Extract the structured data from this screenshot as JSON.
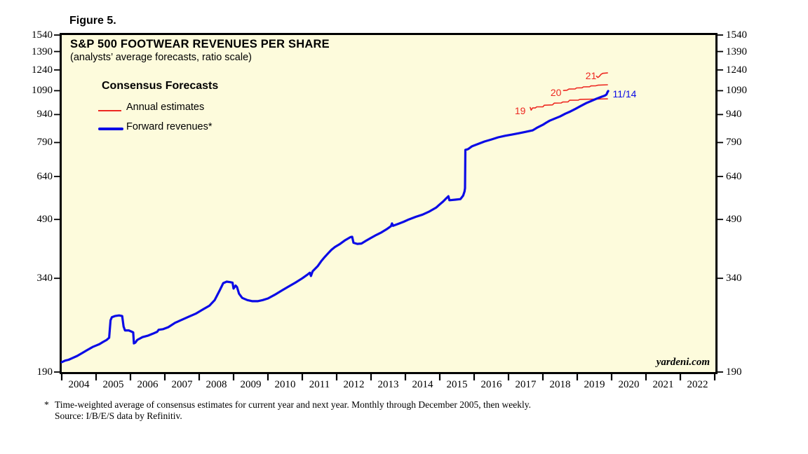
{
  "figure_label": "Figure 5.",
  "footnote": {
    "marker": "*",
    "line1": "Time-weighted average of consensus estimates for current year and next year. Monthly through December 2005, then weekly.",
    "line2": "Source: I/B/E/S data by Refinitiv."
  },
  "chart_data": {
    "type": "line",
    "title": "S&P 500 FOOTWEAR REVENUES PER SHARE",
    "subtitle": "(analysts’ average forecasts, ratio scale)",
    "watermark": "yardeni.com",
    "y_scale": "log (ratio scale)",
    "ylim": [
      190,
      1540
    ],
    "y_ticks": [
      1540,
      1390,
      1240,
      1090,
      940,
      790,
      640,
      490,
      340,
      190
    ],
    "y_tick_label_sides": "left and right",
    "x_start": 2004,
    "x_end": 2023,
    "x_labels": [
      "2004",
      "2005",
      "2006",
      "2007",
      "2008",
      "2009",
      "2010",
      "2011",
      "2012",
      "2013",
      "2014",
      "2015",
      "2016",
      "2017",
      "2018",
      "2019",
      "2020",
      "2021",
      "2022"
    ],
    "grid": "off",
    "plot_background": "#FDFBDC",
    "legend": {
      "title": "Consensus Forecasts",
      "position": "top-left-inside",
      "items": [
        {
          "label": "Annual estimates",
          "color": "#ED2821",
          "style": "thin-red-line"
        },
        {
          "label": "Forward revenues*",
          "color": "#0B0BE6",
          "style": "thick-blue-line"
        }
      ]
    },
    "series": [
      {
        "name": "Annual estimate 2019",
        "color": "#ED2821",
        "stroke_width": 1.6,
        "points": [
          [
            2017.63,
            982
          ],
          [
            2017.66,
            966
          ],
          [
            2017.7,
            979
          ],
          [
            2017.78,
            979
          ],
          [
            2017.82,
            986
          ],
          [
            2018.0,
            986
          ],
          [
            2018.04,
            996
          ],
          [
            2018.28,
            998
          ],
          [
            2018.33,
            1009
          ],
          [
            2018.53,
            1010
          ],
          [
            2018.58,
            1016
          ],
          [
            2018.73,
            1017
          ],
          [
            2018.78,
            1027
          ],
          [
            2019.03,
            1028
          ],
          [
            2019.08,
            1033
          ],
          [
            2019.45,
            1034
          ],
          [
            2019.88,
            1036
          ]
        ]
      },
      {
        "name": "Annual estimate 2020",
        "color": "#ED2821",
        "stroke_width": 1.6,
        "points": [
          [
            2018.6,
            1091
          ],
          [
            2018.7,
            1093
          ],
          [
            2018.76,
            1101
          ],
          [
            2018.94,
            1102
          ],
          [
            2018.98,
            1109
          ],
          [
            2019.14,
            1110
          ],
          [
            2019.18,
            1116
          ],
          [
            2019.36,
            1117
          ],
          [
            2019.4,
            1123
          ],
          [
            2019.54,
            1124
          ],
          [
            2019.6,
            1128
          ],
          [
            2019.88,
            1131
          ]
        ]
      },
      {
        "name": "Annual estimate 2021",
        "color": "#ED2821",
        "stroke_width": 1.6,
        "points": [
          [
            2019.56,
            1193
          ],
          [
            2019.6,
            1183
          ],
          [
            2019.64,
            1191
          ],
          [
            2019.69,
            1206
          ],
          [
            2019.74,
            1214
          ],
          [
            2019.88,
            1217
          ]
        ]
      },
      {
        "name": "Forward revenues*",
        "color": "#0B0BE6",
        "stroke_width": 3.2,
        "points": [
          [
            2004.0,
            202
          ],
          [
            2004.1,
            204
          ],
          [
            2004.2,
            205
          ],
          [
            2004.3,
            207
          ],
          [
            2004.45,
            210
          ],
          [
            2004.6,
            214
          ],
          [
            2004.75,
            218
          ],
          [
            2004.9,
            222
          ],
          [
            2005.0,
            224
          ],
          [
            2005.1,
            226
          ],
          [
            2005.2,
            229
          ],
          [
            2005.31,
            232
          ],
          [
            2005.38,
            235
          ],
          [
            2005.42,
            262
          ],
          [
            2005.46,
            267
          ],
          [
            2005.55,
            269
          ],
          [
            2005.67,
            270
          ],
          [
            2005.76,
            269
          ],
          [
            2005.8,
            252
          ],
          [
            2005.84,
            246
          ],
          [
            2005.95,
            246
          ],
          [
            2006.04,
            244
          ],
          [
            2006.08,
            243
          ],
          [
            2006.1,
            227
          ],
          [
            2006.14,
            228
          ],
          [
            2006.2,
            232
          ],
          [
            2006.35,
            236
          ],
          [
            2006.5,
            238
          ],
          [
            2006.65,
            241
          ],
          [
            2006.78,
            244
          ],
          [
            2006.82,
            247
          ],
          [
            2006.95,
            248
          ],
          [
            2007.1,
            251
          ],
          [
            2007.3,
            258
          ],
          [
            2007.5,
            263
          ],
          [
            2007.7,
            268
          ],
          [
            2007.9,
            273
          ],
          [
            2008.1,
            280
          ],
          [
            2008.3,
            287
          ],
          [
            2008.45,
            297
          ],
          [
            2008.6,
            316
          ],
          [
            2008.7,
            330
          ],
          [
            2008.8,
            333
          ],
          [
            2008.9,
            332
          ],
          [
            2008.97,
            331
          ],
          [
            2009.0,
            319
          ],
          [
            2009.06,
            325
          ],
          [
            2009.1,
            322
          ],
          [
            2009.16,
            309
          ],
          [
            2009.25,
            301
          ],
          [
            2009.4,
            297
          ],
          [
            2009.55,
            295
          ],
          [
            2009.7,
            295
          ],
          [
            2009.85,
            297
          ],
          [
            2010.0,
            300
          ],
          [
            2010.2,
            307
          ],
          [
            2010.4,
            315
          ],
          [
            2010.6,
            323
          ],
          [
            2010.8,
            331
          ],
          [
            2011.0,
            340
          ],
          [
            2011.15,
            348
          ],
          [
            2011.22,
            352
          ],
          [
            2011.25,
            345
          ],
          [
            2011.3,
            355
          ],
          [
            2011.45,
            367
          ],
          [
            2011.55,
            378
          ],
          [
            2011.65,
            388
          ],
          [
            2011.75,
            397
          ],
          [
            2011.85,
            406
          ],
          [
            2011.95,
            413
          ],
          [
            2012.1,
            421
          ],
          [
            2012.25,
            431
          ],
          [
            2012.4,
            439
          ],
          [
            2012.45,
            440
          ],
          [
            2012.49,
            424
          ],
          [
            2012.6,
            421
          ],
          [
            2012.72,
            422
          ],
          [
            2012.85,
            429
          ],
          [
            2013.0,
            437
          ],
          [
            2013.15,
            445
          ],
          [
            2013.3,
            452
          ],
          [
            2013.45,
            461
          ],
          [
            2013.58,
            470
          ],
          [
            2013.61,
            478
          ],
          [
            2013.64,
            471
          ],
          [
            2013.8,
            477
          ],
          [
            2013.95,
            483
          ],
          [
            2014.1,
            490
          ],
          [
            2014.3,
            498
          ],
          [
            2014.5,
            505
          ],
          [
            2014.7,
            515
          ],
          [
            2014.9,
            528
          ],
          [
            2015.0,
            538
          ],
          [
            2015.1,
            548
          ],
          [
            2015.2,
            560
          ],
          [
            2015.25,
            566
          ],
          [
            2015.28,
            552
          ],
          [
            2015.45,
            554
          ],
          [
            2015.6,
            556
          ],
          [
            2015.68,
            568
          ],
          [
            2015.72,
            583
          ],
          [
            2015.735,
            595
          ],
          [
            2015.745,
            755
          ],
          [
            2015.82,
            758
          ],
          [
            2015.94,
            772
          ],
          [
            2016.1,
            782
          ],
          [
            2016.3,
            795
          ],
          [
            2016.5,
            805
          ],
          [
            2016.7,
            816
          ],
          [
            2016.9,
            824
          ],
          [
            2017.1,
            830
          ],
          [
            2017.3,
            837
          ],
          [
            2017.5,
            844
          ],
          [
            2017.7,
            852
          ],
          [
            2017.85,
            868
          ],
          [
            2018.0,
            882
          ],
          [
            2018.1,
            894
          ],
          [
            2018.2,
            905
          ],
          [
            2018.35,
            917
          ],
          [
            2018.5,
            929
          ],
          [
            2018.65,
            945
          ],
          [
            2018.8,
            958
          ],
          [
            2018.95,
            974
          ],
          [
            2019.1,
            991
          ],
          [
            2019.25,
            1008
          ],
          [
            2019.4,
            1022
          ],
          [
            2019.55,
            1036
          ],
          [
            2019.7,
            1049
          ],
          [
            2019.8,
            1057
          ],
          [
            2019.85,
            1064
          ],
          [
            2019.88,
            1080
          ],
          [
            2019.9,
            1088
          ]
        ]
      }
    ],
    "annotations": [
      {
        "text": "19",
        "color": "#ED2821",
        "year": 2017.34,
        "value": 962,
        "anchor": "middle"
      },
      {
        "text": "20",
        "color": "#ED2821",
        "year": 2018.38,
        "value": 1077,
        "anchor": "middle"
      },
      {
        "text": "21",
        "color": "#ED2821",
        "year": 2019.4,
        "value": 1198,
        "anchor": "middle"
      },
      {
        "text": "11/14",
        "color": "#0B0BE6",
        "year": 2020.03,
        "value": 1070,
        "anchor": "start"
      }
    ]
  }
}
